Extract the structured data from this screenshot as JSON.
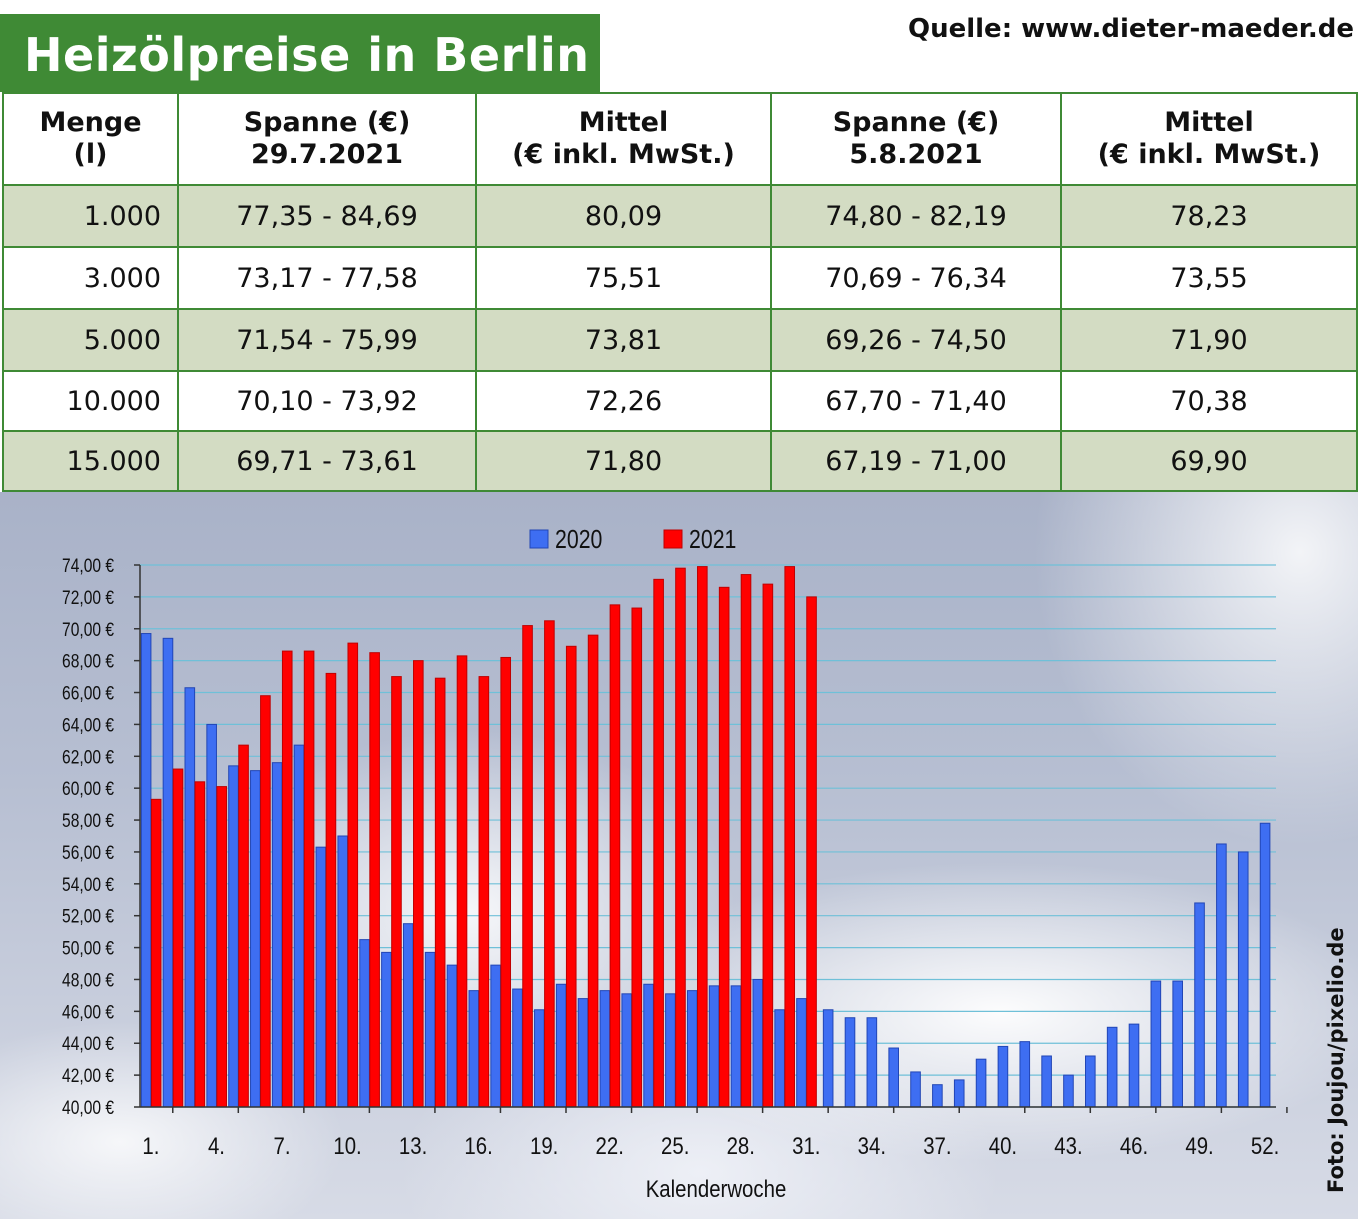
{
  "title": "Heizölpreise in Berlin",
  "source": "Quelle: www.dieter-maeder.de",
  "photo_credit": "Foto: Joujou/pixelio.de",
  "colors": {
    "header_green": "#3f8a35",
    "row_shade": "#d3dcc3",
    "bar_2020": "#3e6ef2",
    "bar_2021": "#ff0000"
  },
  "table": {
    "headers": [
      [
        "Menge",
        "(l)"
      ],
      [
        "Spanne (€)",
        "29.7.2021"
      ],
      [
        "Mittel",
        "(€ inkl. MwSt.)"
      ],
      [
        "Spanne (€)",
        "5.8.2021"
      ],
      [
        "Mittel",
        "(€ inkl. MwSt.)"
      ]
    ],
    "rows": [
      [
        "1.000",
        "77,35 - 84,69",
        "80,09",
        "74,80 - 82,19",
        "78,23"
      ],
      [
        "3.000",
        "73,17 - 77,58",
        "75,51",
        "70,69 - 76,34",
        "73,55"
      ],
      [
        "5.000",
        "71,54 - 75,99",
        "73,81",
        "69,26 - 74,50",
        "71,90"
      ],
      [
        "10.000",
        "70,10 - 73,92",
        "72,26",
        "67,70 - 71,40",
        "70,38"
      ],
      [
        "15.000",
        "69,71 - 73,61",
        "71,80",
        "67,19 - 71,00",
        "69,90"
      ]
    ]
  },
  "chart_data": {
    "type": "bar",
    "xlabel": "Kalenderwoche",
    "ylabel": "",
    "ylim": [
      40,
      74
    ],
    "yticks": [
      "40,00 €",
      "42,00 €",
      "44,00 €",
      "46,00 €",
      "48,00 €",
      "50,00 €",
      "52,00 €",
      "54,00 €",
      "56,00 €",
      "58,00 €",
      "60,00 €",
      "62,00 €",
      "64,00 €",
      "66,00 €",
      "68,00 €",
      "70,00 €",
      "72,00 €",
      "74,00 €"
    ],
    "xtick_labels": [
      "1.",
      "4.",
      "7.",
      "10.",
      "13.",
      "16.",
      "19.",
      "22.",
      "25.",
      "28.",
      "31.",
      "34.",
      "37.",
      "40.",
      "43.",
      "46.",
      "49.",
      "52."
    ],
    "xtick_weeks": [
      1,
      4,
      7,
      10,
      13,
      16,
      19,
      22,
      25,
      28,
      31,
      34,
      37,
      40,
      43,
      46,
      49,
      52
    ],
    "legend": "top-center",
    "grid": true,
    "weeks": [
      1,
      2,
      3,
      4,
      5,
      6,
      7,
      8,
      9,
      10,
      11,
      12,
      13,
      14,
      15,
      16,
      17,
      18,
      19,
      20,
      21,
      22,
      23,
      24,
      25,
      26,
      27,
      28,
      29,
      30,
      31,
      32,
      33,
      34,
      35,
      36,
      37,
      38,
      39,
      40,
      41,
      42,
      43,
      44,
      45,
      46,
      47,
      48,
      49,
      50,
      51,
      52
    ],
    "series": [
      {
        "name": "2020",
        "values": [
          69.7,
          69.4,
          66.3,
          64.0,
          61.4,
          61.1,
          61.6,
          62.7,
          56.3,
          57.0,
          50.5,
          49.7,
          51.5,
          49.7,
          48.9,
          47.3,
          48.9,
          47.4,
          46.1,
          47.7,
          46.8,
          47.3,
          47.1,
          47.7,
          47.1,
          47.3,
          47.6,
          47.6,
          48.0,
          46.1,
          46.8,
          46.1,
          45.6,
          45.6,
          43.7,
          42.2,
          41.4,
          41.7,
          43.0,
          43.8,
          44.1,
          43.2,
          42.0,
          43.2,
          45.0,
          45.2,
          47.9,
          47.9,
          52.8,
          56.5,
          56.0,
          57.8
        ]
      },
      {
        "name": "2021",
        "values": [
          59.3,
          61.2,
          60.4,
          60.1,
          62.7,
          65.8,
          68.6,
          68.6,
          67.2,
          69.1,
          68.5,
          67.0,
          68.0,
          66.9,
          68.3,
          67.0,
          68.2,
          70.2,
          70.5,
          68.9,
          69.6,
          71.5,
          71.3,
          73.1,
          73.8,
          73.9,
          72.6,
          73.4,
          72.8,
          73.9,
          72.0
        ]
      }
    ]
  }
}
